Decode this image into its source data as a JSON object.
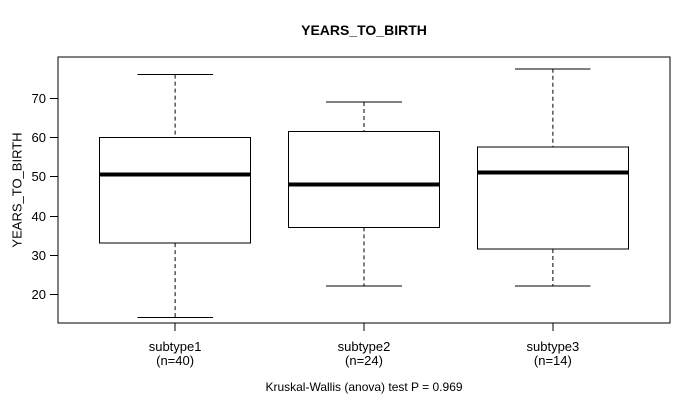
{
  "chart_data": {
    "type": "boxplot",
    "title": "YEARS_TO_BIRTH",
    "ylabel": "YEARS_TO_BIRTH",
    "caption": "Kruskal-Wallis (anova) test P = 0.969",
    "yticks": [
      20,
      30,
      40,
      50,
      60,
      70
    ],
    "ylim": [
      12.6,
      80.5
    ],
    "grid": false,
    "legend": "none",
    "colors": {
      "line": "#000000",
      "box_fill": "#ffffff",
      "background": "#ffffff"
    },
    "groups": [
      {
        "label": "subtype1",
        "sublabel": "(n=40)",
        "n": 40,
        "whisker_low": 14,
        "q1": 33,
        "median": 50.5,
        "q3": 60,
        "whisker_high": 76
      },
      {
        "label": "subtype2",
        "sublabel": "(n=24)",
        "n": 24,
        "whisker_low": 22,
        "q1": 37,
        "median": 48,
        "q3": 61.5,
        "whisker_high": 69
      },
      {
        "label": "subtype3",
        "sublabel": "(n=14)",
        "n": 14,
        "whisker_low": 22,
        "q1": 31.5,
        "median": 51,
        "q3": 57.5,
        "whisker_high": 77.5
      }
    ]
  }
}
